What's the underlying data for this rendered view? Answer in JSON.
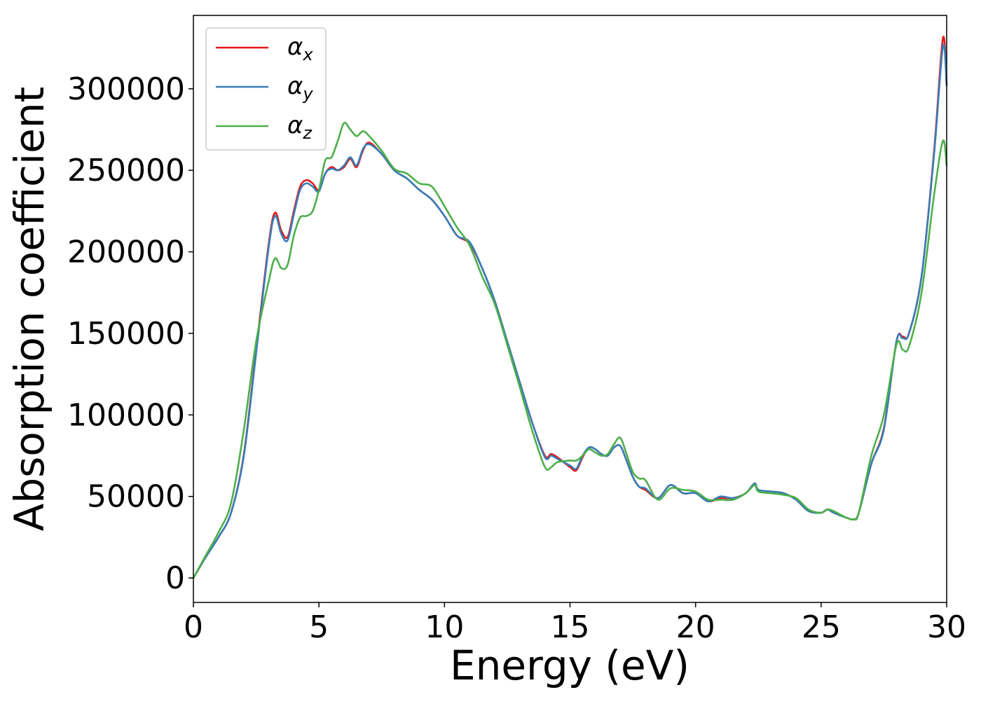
{
  "chart_data": {
    "type": "line",
    "title": "",
    "xlabel": "Energy (eV)",
    "ylabel": "Absorption coefficient",
    "xlim": [
      0,
      30
    ],
    "ylim": [
      -15000,
      345000
    ],
    "xticks": [
      0,
      5,
      10,
      15,
      20,
      25,
      30
    ],
    "yticks": [
      0,
      50000,
      100000,
      150000,
      200000,
      250000,
      300000
    ],
    "grid": false,
    "legend_position": "top-left",
    "series": [
      {
        "name": "α_x",
        "label_base": "α",
        "label_sub": "x",
        "color": "#e41a1c",
        "x": [
          0,
          0.5,
          1.0,
          1.5,
          2.0,
          2.5,
          3.0,
          3.25,
          3.5,
          3.75,
          4.0,
          4.25,
          4.5,
          4.75,
          5.0,
          5.25,
          5.5,
          5.75,
          6.0,
          6.25,
          6.5,
          6.75,
          7.0,
          7.5,
          8.0,
          8.5,
          9.0,
          9.5,
          10.0,
          10.5,
          11.0,
          11.5,
          12.0,
          12.5,
          13.0,
          13.5,
          14.0,
          14.25,
          14.5,
          15.0,
          15.25,
          15.5,
          15.75,
          16.0,
          16.25,
          16.5,
          16.75,
          17.0,
          17.25,
          17.5,
          17.75,
          18.0,
          18.5,
          19.0,
          19.5,
          20.0,
          20.5,
          21.0,
          21.5,
          22.0,
          22.35,
          22.5,
          23.0,
          23.5,
          24.0,
          24.5,
          25.0,
          25.25,
          25.5,
          26.0,
          26.3,
          26.5,
          27.0,
          27.5,
          28.0,
          28.25,
          28.5,
          29.0,
          29.5,
          29.85,
          30.0
        ],
        "y": [
          0,
          13000,
          25000,
          40000,
          75000,
          140000,
          205000,
          224000,
          213000,
          209000,
          225000,
          240000,
          244000,
          242000,
          238000,
          248000,
          252000,
          250000,
          252000,
          257000,
          252000,
          262000,
          267000,
          260000,
          250000,
          245000,
          238000,
          232000,
          222000,
          210000,
          205000,
          190000,
          170000,
          145000,
          120000,
          95000,
          75000,
          76000,
          74000,
          68000,
          66000,
          74000,
          80000,
          79000,
          76000,
          75000,
          80000,
          81000,
          72000,
          62000,
          56000,
          54000,
          49000,
          57000,
          52000,
          52000,
          47000,
          49000,
          49000,
          52000,
          58000,
          54000,
          53000,
          52000,
          48000,
          41000,
          40000,
          42000,
          40000,
          37000,
          36000,
          40000,
          70000,
          92000,
          145000,
          148000,
          150000,
          185000,
          262000,
          331000,
          303000
        ]
      },
      {
        "name": "α_y",
        "label_base": "α",
        "label_sub": "y",
        "color": "#377eb8",
        "x": [
          0,
          0.5,
          1.0,
          1.5,
          2.0,
          2.5,
          3.0,
          3.25,
          3.5,
          3.75,
          4.0,
          4.25,
          4.5,
          4.75,
          5.0,
          5.25,
          5.5,
          5.75,
          6.0,
          6.25,
          6.5,
          6.75,
          7.0,
          7.5,
          8.0,
          8.5,
          9.0,
          9.5,
          10.0,
          10.5,
          11.0,
          11.5,
          12.0,
          12.5,
          13.0,
          13.5,
          14.0,
          14.25,
          14.5,
          15.0,
          15.25,
          15.5,
          15.75,
          16.0,
          16.25,
          16.5,
          16.75,
          17.0,
          17.25,
          17.5,
          17.75,
          18.0,
          18.5,
          19.0,
          19.5,
          20.0,
          20.5,
          21.0,
          21.5,
          22.0,
          22.35,
          22.5,
          23.0,
          23.5,
          24.0,
          24.5,
          25.0,
          25.25,
          25.5,
          26.0,
          26.3,
          26.5,
          27.0,
          27.5,
          28.0,
          28.25,
          28.5,
          29.0,
          29.5,
          29.85,
          30.0
        ],
        "y": [
          0,
          13000,
          25000,
          40000,
          74000,
          138000,
          203000,
          222000,
          211000,
          207000,
          223000,
          238000,
          242000,
          240000,
          237000,
          248000,
          251000,
          250000,
          253000,
          258000,
          253000,
          263000,
          266000,
          260000,
          250000,
          245000,
          238000,
          232000,
          222000,
          210000,
          206000,
          190000,
          170000,
          145000,
          120000,
          95000,
          74000,
          75000,
          73000,
          69000,
          67000,
          75000,
          80000,
          79000,
          76000,
          75000,
          80000,
          81000,
          72000,
          62000,
          56000,
          55000,
          49000,
          57000,
          52000,
          52000,
          47000,
          50000,
          49000,
          52000,
          58000,
          54000,
          53000,
          52000,
          48000,
          41000,
          40000,
          42000,
          40000,
          37000,
          36000,
          40000,
          70000,
          91000,
          145000,
          147000,
          150000,
          185000,
          260000,
          326000,
          302000
        ]
      },
      {
        "name": "α_z",
        "label_base": "α",
        "label_sub": "z",
        "color": "#4daf4a",
        "x": [
          0,
          0.5,
          1.0,
          1.5,
          2.0,
          2.5,
          3.0,
          3.25,
          3.5,
          3.75,
          4.0,
          4.25,
          4.5,
          4.75,
          5.0,
          5.25,
          5.5,
          5.75,
          6.0,
          6.25,
          6.5,
          6.75,
          7.0,
          7.5,
          8.0,
          8.5,
          9.0,
          9.5,
          10.0,
          10.5,
          11.0,
          11.5,
          12.0,
          12.5,
          13.0,
          13.5,
          14.0,
          14.25,
          14.5,
          15.0,
          15.25,
          15.5,
          15.75,
          16.0,
          16.25,
          16.5,
          16.75,
          17.0,
          17.25,
          17.5,
          17.75,
          18.0,
          18.5,
          19.0,
          19.5,
          20.0,
          20.5,
          21.0,
          21.5,
          22.0,
          22.35,
          22.5,
          23.0,
          23.5,
          24.0,
          24.5,
          25.0,
          25.25,
          25.5,
          26.0,
          26.3,
          26.5,
          27.0,
          27.5,
          28.0,
          28.25,
          28.5,
          29.0,
          29.5,
          29.85,
          30.0
        ],
        "y": [
          0,
          14000,
          28000,
          46000,
          90000,
          145000,
          182000,
          196000,
          190000,
          192000,
          210000,
          221000,
          222000,
          225000,
          238000,
          256000,
          258000,
          268000,
          279000,
          275000,
          271000,
          274000,
          271000,
          262000,
          251000,
          248000,
          242000,
          240000,
          228000,
          215000,
          204000,
          185000,
          168000,
          143000,
          117000,
          90000,
          68000,
          68000,
          71000,
          72000,
          72000,
          75000,
          79000,
          77000,
          75000,
          76000,
          82000,
          86000,
          76000,
          65000,
          61000,
          60000,
          48000,
          55000,
          54000,
          53000,
          48000,
          48000,
          48000,
          52000,
          57000,
          53000,
          52000,
          51000,
          49000,
          42000,
          40000,
          42000,
          41000,
          37000,
          36000,
          40000,
          75000,
          100000,
          143000,
          140000,
          142000,
          175000,
          235000,
          268000,
          253000
        ]
      }
    ]
  }
}
